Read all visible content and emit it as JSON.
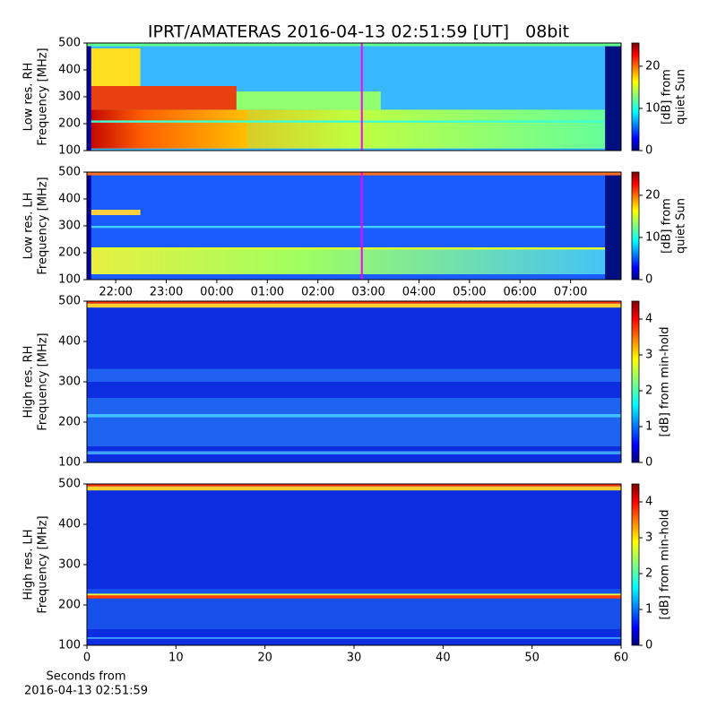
{
  "chart_data": [
    {
      "type": "heatmap",
      "title": "IPRT/AMATERAS 2016-04-13 02:51:59 [UT]   08bit",
      "ylabel": [
        "Low res. RH",
        "Frequency [MHz]"
      ],
      "ylim": [
        100,
        500
      ],
      "yticks": [
        100,
        200,
        300,
        400,
        500
      ],
      "xlim": [
        21.43,
        32.0
      ],
      "colormap": "jet",
      "marker": {
        "x": 26.87,
        "color": "#ff00ff"
      },
      "colorbar": {
        "label": [
          "[dB] from",
          "quiet Sun"
        ],
        "clim": [
          0,
          25.5
        ],
        "ticks": [
          0,
          10,
          20
        ]
      }
    },
    {
      "type": "heatmap",
      "ylabel": [
        "Low res. LH",
        "Frequency [MHz]"
      ],
      "ylim": [
        100,
        500
      ],
      "yticks": [
        100,
        200,
        300,
        400,
        500
      ],
      "xlim": [
        21.43,
        32.0
      ],
      "colormap": "jet",
      "xticks": [
        {
          "value": 22,
          "label": "22:00"
        },
        {
          "value": 23,
          "label": "23:00"
        },
        {
          "value": 24,
          "label": "00:00"
        },
        {
          "value": 25,
          "label": "01:00"
        },
        {
          "value": 26,
          "label": "02:00"
        },
        {
          "value": 27,
          "label": "03:00"
        },
        {
          "value": 28,
          "label": "04:00"
        },
        {
          "value": 29,
          "label": "05:00"
        },
        {
          "value": 30,
          "label": "06:00"
        },
        {
          "value": 31,
          "label": "07:00"
        }
      ],
      "marker": {
        "x": 26.87,
        "color": "#ff00ff"
      },
      "colorbar": {
        "label": [
          "[dB] from",
          "quiet Sun"
        ],
        "clim": [
          0,
          25.5
        ],
        "ticks": [
          0,
          10,
          20
        ]
      }
    },
    {
      "type": "heatmap",
      "ylabel": [
        "High res. RH",
        "Frequency [MHz]"
      ],
      "ylim": [
        100,
        500
      ],
      "yticks": [
        100,
        200,
        300,
        400,
        500
      ],
      "xlim": [
        0,
        60
      ],
      "colormap": "jet",
      "colorbar": {
        "label": [
          "[dB] from min-hold"
        ],
        "clim": [
          0,
          4.5
        ],
        "ticks": [
          0,
          1,
          2,
          3,
          4
        ]
      }
    },
    {
      "type": "heatmap",
      "ylabel": [
        "High res. LH",
        "Frequency [MHz]"
      ],
      "ylim": [
        100,
        500
      ],
      "yticks": [
        100,
        200,
        300,
        400,
        500
      ],
      "xlim": [
        0,
        60
      ],
      "xticks": [
        0,
        10,
        20,
        30,
        40,
        50,
        60
      ],
      "xlabel": [
        "Seconds from",
        "2016-04-13 02:51:59"
      ],
      "colormap": "jet",
      "colorbar": {
        "label": [
          "[dB] from min-hold"
        ],
        "clim": [
          0,
          4.5
        ],
        "ticks": [
          0,
          1,
          2,
          3,
          4
        ]
      }
    }
  ]
}
